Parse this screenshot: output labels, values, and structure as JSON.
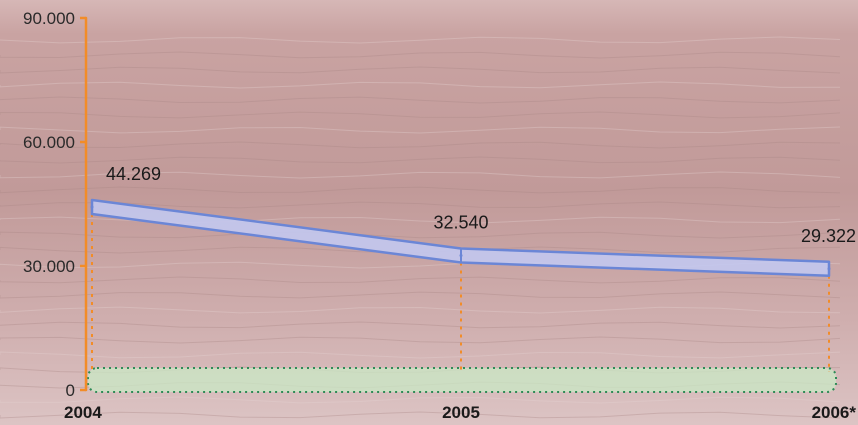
{
  "chart_data": {
    "type": "line",
    "title": "",
    "xlabel": "",
    "ylabel": "",
    "categories": [
      "2004",
      "2005",
      "2006*"
    ],
    "series": [
      {
        "values": [
          44269,
          32540,
          29322
        ],
        "labels": [
          "44.269",
          "32.540",
          "29.322"
        ]
      }
    ],
    "yticks": [
      {
        "value": 0,
        "label": "0"
      },
      {
        "value": 30000,
        "label": "30.000"
      },
      {
        "value": 60000,
        "label": "60.000"
      },
      {
        "value": 90000,
        "label": "90.000"
      }
    ],
    "ylim": [
      0,
      90000
    ],
    "grid": false,
    "colors": {
      "axis": "#f28c28",
      "guide": "#f28c28",
      "band_fill": "#c2c8f0",
      "band_stroke": "#6b86d6",
      "base_fill": "#c9e9c6",
      "base_stroke": "#2e8b57",
      "background": "#c9a8a6"
    }
  }
}
